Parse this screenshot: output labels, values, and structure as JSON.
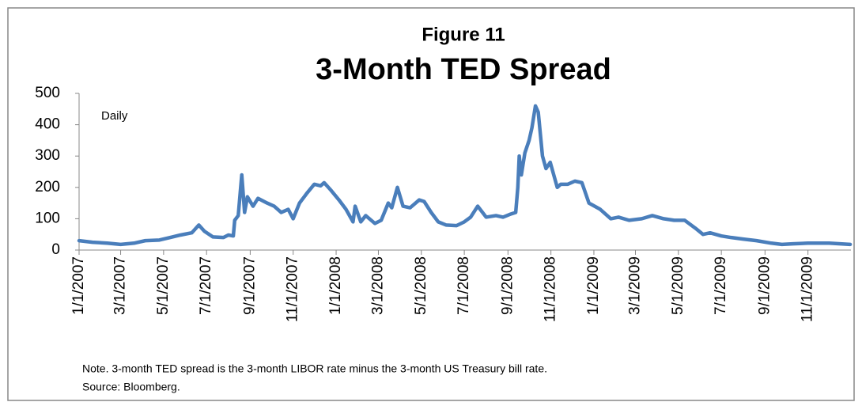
{
  "chart_data": {
    "type": "line",
    "figure_label": "Figure 11",
    "title": "3-Month TED Spread",
    "annotation": "Daily",
    "note": "Note. 3-month TED spread is the 3-month LIBOR rate minus the  3-month US Treasury bill rate.",
    "source": "Source: Bloomberg.",
    "color": "#4a7ebb",
    "x": [
      "1/1/2007",
      "1/20/2007",
      "2/10/2007",
      "3/1/2007",
      "3/20/2007",
      "4/5/2007",
      "4/25/2007",
      "5/10/2007",
      "5/25/2007",
      "6/10/2007",
      "6/20/2007",
      "6/28/2007",
      "7/10/2007",
      "7/25/2007",
      "8/1/2007",
      "8/8/2007",
      "8/10/2007",
      "8/15/2007",
      "8/20/2007",
      "8/24/2007",
      "8/28/2007",
      "9/5/2007",
      "9/12/2007",
      "9/25/2007",
      "10/5/2007",
      "10/15/2007",
      "10/25/2007",
      "11/1/2007",
      "11/10/2007",
      "11/20/2007",
      "12/1/2007",
      "12/10/2007",
      "12/15/2007",
      "12/25/2007",
      "1/5/2008",
      "1/15/2008",
      "1/25/2008",
      "1/28/2008",
      "2/5/2008",
      "2/12/2008",
      "2/25/2008",
      "3/5/2008",
      "3/15/2008",
      "3/20/2008",
      "3/28/2008",
      "4/5/2008",
      "4/15/2008",
      "4/28/2008",
      "5/5/2008",
      "5/15/2008",
      "5/25/2008",
      "6/5/2008",
      "6/20/2008",
      "7/1/2008",
      "7/10/2008",
      "7/20/2008",
      "8/1/2008",
      "8/15/2008",
      "8/25/2008",
      "9/5/2008",
      "9/12/2008",
      "9/15/2008",
      "9/17/2008",
      "9/20/2008",
      "9/25/2008",
      "10/1/2008",
      "10/5/2008",
      "10/10/2008",
      "10/14/2008",
      "10/20/2008",
      "10/25/2008",
      "10/31/2008",
      "11/10/2008",
      "11/15/2008",
      "11/25/2008",
      "12/5/2008",
      "12/15/2008",
      "12/25/2008",
      "1/10/2009",
      "1/25/2009",
      "2/5/2009",
      "2/20/2009",
      "3/10/2009",
      "3/25/2009",
      "4/10/2009",
      "4/25/2009",
      "5/10/2009",
      "5/25/2009",
      "6/5/2009",
      "6/15/2009",
      "7/1/2009",
      "7/15/2009",
      "8/1/2009",
      "8/20/2009",
      "9/10/2009",
      "9/25/2009",
      "10/10/2009",
      "11/1/2009",
      "12/1/2009",
      "12/31/2009"
    ],
    "values": [
      30,
      25,
      22,
      18,
      22,
      30,
      32,
      40,
      48,
      55,
      80,
      60,
      42,
      40,
      48,
      45,
      95,
      110,
      240,
      120,
      170,
      140,
      165,
      150,
      140,
      120,
      130,
      100,
      150,
      180,
      210,
      205,
      215,
      190,
      160,
      130,
      90,
      140,
      90,
      110,
      85,
      95,
      150,
      135,
      200,
      140,
      135,
      160,
      155,
      120,
      90,
      80,
      78,
      90,
      105,
      140,
      105,
      110,
      105,
      115,
      120,
      200,
      300,
      240,
      310,
      350,
      390,
      460,
      440,
      300,
      260,
      280,
      200,
      210,
      210,
      220,
      215,
      150,
      130,
      100,
      105,
      95,
      100,
      110,
      100,
      95,
      95,
      70,
      50,
      55,
      45,
      40,
      35,
      30,
      22,
      18,
      20,
      22,
      22,
      18
    ],
    "xlim": [
      "1/1/2007",
      "1/1/2010"
    ],
    "xticks": [
      "1/1/2007",
      "3/1/2007",
      "5/1/2007",
      "7/1/2007",
      "9/1/2007",
      "11/1/2007",
      "1/1/2008",
      "3/1/2008",
      "5/1/2008",
      "7/1/2008",
      "9/1/2008",
      "11/1/2008",
      "1/1/2009",
      "3/1/2009",
      "5/1/2009",
      "7/1/2009",
      "9/1/2009",
      "11/1/2009"
    ],
    "ylim": [
      0,
      500
    ],
    "yticks": [
      0,
      100,
      200,
      300,
      400,
      500
    ],
    "grid": false
  }
}
